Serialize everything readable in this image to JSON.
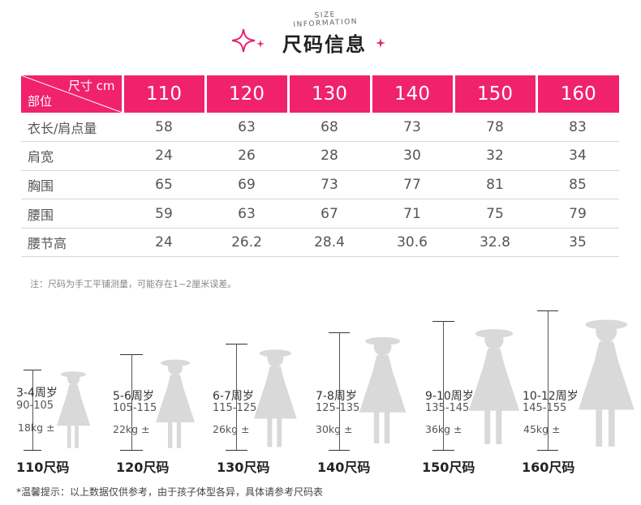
{
  "header": {
    "subtitle": "SIZE INFORMATION",
    "title": "尺码信息"
  },
  "table": {
    "corner_top": "尺寸 cm",
    "corner_bottom": "部位",
    "sizes": [
      "110",
      "120",
      "130",
      "140",
      "150",
      "160"
    ],
    "rows": [
      {
        "label": "衣长/肩点量",
        "values": [
          "58",
          "63",
          "68",
          "73",
          "78",
          "83"
        ]
      },
      {
        "label": "肩宽",
        "values": [
          "24",
          "26",
          "28",
          "30",
          "32",
          "34"
        ]
      },
      {
        "label": "胸围",
        "values": [
          "65",
          "69",
          "73",
          "77",
          "81",
          "85"
        ]
      },
      {
        "label": "腰围",
        "values": [
          "59",
          "63",
          "67",
          "71",
          "75",
          "79"
        ]
      },
      {
        "label": "腰节高",
        "values": [
          "24",
          "26.2",
          "28.4",
          "30.6",
          "32.8",
          "35"
        ]
      }
    ]
  },
  "note": "注：尺码为手工平铺测量，可能存在1~2厘米误差。",
  "figures": [
    {
      "age": "3-4周岁",
      "height": "90-105",
      "weight": "18kg ±",
      "size": "110尺码"
    },
    {
      "age": "5-6周岁",
      "height": "105-115",
      "weight": "22kg ±",
      "size": "120尺码"
    },
    {
      "age": "6-7周岁",
      "height": "115-125",
      "weight": "26kg ±",
      "size": "130尺码"
    },
    {
      "age": "7-8周岁",
      "height": "125-135",
      "weight": "30kg ±",
      "size": "140尺码"
    },
    {
      "age": "9-10周岁",
      "height": "135-145",
      "weight": "36kg ±",
      "size": "150尺码"
    },
    {
      "age": "10-12周岁",
      "height": "145-155",
      "weight": "45kg ±",
      "size": "160尺码"
    }
  ],
  "footer_note": "*温馨提示：以上数据仅供参考，由于孩子体型各异，具体请参考尺码表",
  "colors": {
    "accent": "#f0226b",
    "silhouette": "#d9d9d9",
    "sparkle": "#e8236f"
  },
  "icons": [
    "sparkle-icon",
    "girl-silhouette-icon"
  ]
}
